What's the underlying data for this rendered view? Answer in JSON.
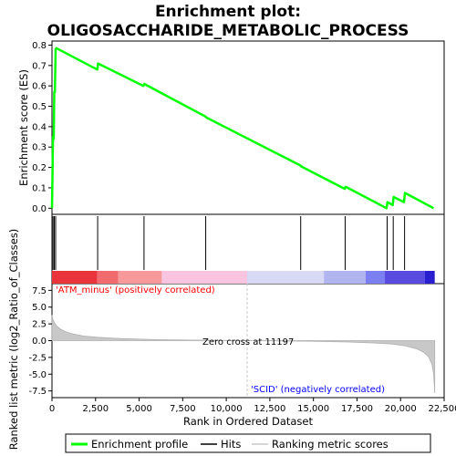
{
  "title_line1": "Enrichment plot:",
  "title_line2": "OLIGOSACCHARIDE_METABOLIC_PROCESS",
  "colors": {
    "es_line": "#00ff00",
    "hits": "#000000",
    "metric_fill": "#c8c8c8",
    "pos_label": "#ff0000",
    "neg_label": "#0000ff",
    "zero_cross_line": "#c8c8c8"
  },
  "chart_data": [
    {
      "type": "line",
      "ylabel": "Enrichment score (ES)",
      "ylim": [
        -0.03,
        0.82
      ],
      "yticks": [
        0.0,
        0.1,
        0.2,
        0.3,
        0.4,
        0.5,
        0.6,
        0.7,
        0.8
      ],
      "ytick_labels": [
        "0.0",
        "0.1",
        "0.2",
        "0.3",
        "0.4",
        "0.5",
        "0.6",
        "0.7",
        "0.8"
      ],
      "series": [
        {
          "name": "Enrichment profile",
          "x": [
            0,
            30,
            60,
            100,
            130,
            170,
            210,
            250,
            2600,
            2640,
            5250,
            5300,
            5400,
            8800,
            8850,
            14250,
            14300,
            16800,
            16850,
            19200,
            19250,
            19550,
            19600,
            20200,
            20250,
            21900
          ],
          "y": [
            0.0,
            0.18,
            0.35,
            0.34,
            0.57,
            0.57,
            0.78,
            0.785,
            0.68,
            0.71,
            0.6,
            0.61,
            0.605,
            0.45,
            0.445,
            0.21,
            0.205,
            0.095,
            0.105,
            0.0,
            0.03,
            0.015,
            0.055,
            0.03,
            0.075,
            0.0
          ]
        }
      ]
    },
    {
      "type": "hits",
      "name": "Hits",
      "positions": [
        60,
        130,
        210,
        2620,
        5280,
        8820,
        14270,
        16820,
        19230,
        19580,
        20230
      ]
    },
    {
      "type": "area",
      "name": "Ranking metric scores",
      "xlabel": "Rank in Ordered Dataset",
      "ylabel": "Ranked list metric (log2_Ratio_of_Classes)",
      "xlim": [
        0,
        22500
      ],
      "ylim": [
        -8.5,
        8.5
      ],
      "xticks": [
        0,
        2500,
        5000,
        7500,
        10000,
        12500,
        15000,
        17500,
        20000,
        22500
      ],
      "xtick_labels": [
        "0",
        "2,500",
        "5,000",
        "7,500",
        "10,000",
        "12,500",
        "15,000",
        "17,500",
        "20,000",
        "22,500"
      ],
      "yticks": [
        -7.5,
        -5.0,
        -2.5,
        0.0,
        2.5,
        5.0,
        7.5
      ],
      "ytick_labels": [
        "-7.5",
        "-5.0",
        "-2.5",
        "0.0",
        "2.5",
        "5.0",
        "7.5"
      ],
      "x": [
        0,
        50,
        150,
        300,
        500,
        800,
        1200,
        1800,
        2600,
        4000,
        6000,
        8000,
        10000,
        11197,
        13000,
        15000,
        17000,
        18500,
        19500,
        20300,
        20900,
        21300,
        21600,
        21800,
        21900,
        21960
      ],
      "y": [
        3.8,
        3.2,
        2.6,
        2.1,
        1.7,
        1.3,
        1.0,
        0.7,
        0.5,
        0.3,
        0.15,
        0.08,
        0.03,
        0.0,
        -0.05,
        -0.1,
        -0.2,
        -0.35,
        -0.5,
        -0.8,
        -1.2,
        -1.7,
        -2.4,
        -3.5,
        -5.0,
        -7.8
      ],
      "annotations": {
        "positive": "'ATM_minus' (positively correlated)",
        "negative": "'SCID' (negatively correlated)",
        "zero_cross": "Zero cross at 11197",
        "zero_cross_rank": 11197
      }
    }
  ],
  "heatbar": [
    {
      "start": 0,
      "end": 2600,
      "color": "#e8343a"
    },
    {
      "start": 2600,
      "end": 3800,
      "color": "#f06a6e"
    },
    {
      "start": 3800,
      "end": 6300,
      "color": "#f7999b"
    },
    {
      "start": 6300,
      "end": 11200,
      "color": "#f9c4e0"
    },
    {
      "start": 11200,
      "end": 15600,
      "color": "#d7d9f5"
    },
    {
      "start": 15600,
      "end": 18000,
      "color": "#b1b5ef"
    },
    {
      "start": 18000,
      "end": 19100,
      "color": "#7c7ff0"
    },
    {
      "start": 19100,
      "end": 21400,
      "color": "#5a4be0"
    },
    {
      "start": 21400,
      "end": 21960,
      "color": "#2a1fd0"
    }
  ],
  "legend": [
    {
      "label": "Enrichment profile",
      "color": "#00ff00"
    },
    {
      "label": "Hits",
      "color": "#000000"
    },
    {
      "label": "Ranking metric scores",
      "color": "#c8c8c8"
    }
  ]
}
